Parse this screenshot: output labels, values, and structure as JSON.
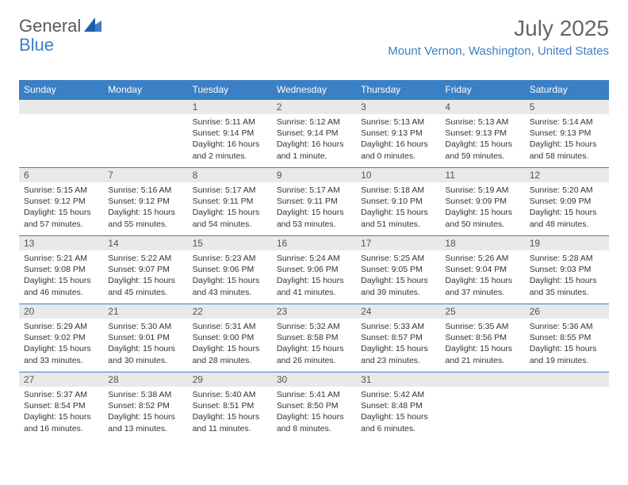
{
  "logo": {
    "text1": "General",
    "text2": "Blue"
  },
  "title": "July 2025",
  "location": "Mount Vernon, Washington, United States",
  "day_headers": [
    "Sunday",
    "Monday",
    "Tuesday",
    "Wednesday",
    "Thursday",
    "Friday",
    "Saturday"
  ],
  "colors": {
    "header_bg": "#3b7fc4",
    "header_fg": "#ffffff",
    "date_bg": "#e9e9e9",
    "accent": "#3b7fc4",
    "text": "#333333",
    "title_fg": "#666666"
  },
  "weeks": [
    [
      null,
      null,
      {
        "d": "1",
        "sr": "Sunrise: 5:11 AM",
        "ss": "Sunset: 9:14 PM",
        "dl": "Daylight: 16 hours and 2 minutes."
      },
      {
        "d": "2",
        "sr": "Sunrise: 5:12 AM",
        "ss": "Sunset: 9:14 PM",
        "dl": "Daylight: 16 hours and 1 minute."
      },
      {
        "d": "3",
        "sr": "Sunrise: 5:13 AM",
        "ss": "Sunset: 9:13 PM",
        "dl": "Daylight: 16 hours and 0 minutes."
      },
      {
        "d": "4",
        "sr": "Sunrise: 5:13 AM",
        "ss": "Sunset: 9:13 PM",
        "dl": "Daylight: 15 hours and 59 minutes."
      },
      {
        "d": "5",
        "sr": "Sunrise: 5:14 AM",
        "ss": "Sunset: 9:13 PM",
        "dl": "Daylight: 15 hours and 58 minutes."
      }
    ],
    [
      {
        "d": "6",
        "sr": "Sunrise: 5:15 AM",
        "ss": "Sunset: 9:12 PM",
        "dl": "Daylight: 15 hours and 57 minutes."
      },
      {
        "d": "7",
        "sr": "Sunrise: 5:16 AM",
        "ss": "Sunset: 9:12 PM",
        "dl": "Daylight: 15 hours and 55 minutes."
      },
      {
        "d": "8",
        "sr": "Sunrise: 5:17 AM",
        "ss": "Sunset: 9:11 PM",
        "dl": "Daylight: 15 hours and 54 minutes."
      },
      {
        "d": "9",
        "sr": "Sunrise: 5:17 AM",
        "ss": "Sunset: 9:11 PM",
        "dl": "Daylight: 15 hours and 53 minutes."
      },
      {
        "d": "10",
        "sr": "Sunrise: 5:18 AM",
        "ss": "Sunset: 9:10 PM",
        "dl": "Daylight: 15 hours and 51 minutes."
      },
      {
        "d": "11",
        "sr": "Sunrise: 5:19 AM",
        "ss": "Sunset: 9:09 PM",
        "dl": "Daylight: 15 hours and 50 minutes."
      },
      {
        "d": "12",
        "sr": "Sunrise: 5:20 AM",
        "ss": "Sunset: 9:09 PM",
        "dl": "Daylight: 15 hours and 48 minutes."
      }
    ],
    [
      {
        "d": "13",
        "sr": "Sunrise: 5:21 AM",
        "ss": "Sunset: 9:08 PM",
        "dl": "Daylight: 15 hours and 46 minutes."
      },
      {
        "d": "14",
        "sr": "Sunrise: 5:22 AM",
        "ss": "Sunset: 9:07 PM",
        "dl": "Daylight: 15 hours and 45 minutes."
      },
      {
        "d": "15",
        "sr": "Sunrise: 5:23 AM",
        "ss": "Sunset: 9:06 PM",
        "dl": "Daylight: 15 hours and 43 minutes."
      },
      {
        "d": "16",
        "sr": "Sunrise: 5:24 AM",
        "ss": "Sunset: 9:06 PM",
        "dl": "Daylight: 15 hours and 41 minutes."
      },
      {
        "d": "17",
        "sr": "Sunrise: 5:25 AM",
        "ss": "Sunset: 9:05 PM",
        "dl": "Daylight: 15 hours and 39 minutes."
      },
      {
        "d": "18",
        "sr": "Sunrise: 5:26 AM",
        "ss": "Sunset: 9:04 PM",
        "dl": "Daylight: 15 hours and 37 minutes."
      },
      {
        "d": "19",
        "sr": "Sunrise: 5:28 AM",
        "ss": "Sunset: 9:03 PM",
        "dl": "Daylight: 15 hours and 35 minutes."
      }
    ],
    [
      {
        "d": "20",
        "sr": "Sunrise: 5:29 AM",
        "ss": "Sunset: 9:02 PM",
        "dl": "Daylight: 15 hours and 33 minutes."
      },
      {
        "d": "21",
        "sr": "Sunrise: 5:30 AM",
        "ss": "Sunset: 9:01 PM",
        "dl": "Daylight: 15 hours and 30 minutes."
      },
      {
        "d": "22",
        "sr": "Sunrise: 5:31 AM",
        "ss": "Sunset: 9:00 PM",
        "dl": "Daylight: 15 hours and 28 minutes."
      },
      {
        "d": "23",
        "sr": "Sunrise: 5:32 AM",
        "ss": "Sunset: 8:58 PM",
        "dl": "Daylight: 15 hours and 26 minutes."
      },
      {
        "d": "24",
        "sr": "Sunrise: 5:33 AM",
        "ss": "Sunset: 8:57 PM",
        "dl": "Daylight: 15 hours and 23 minutes."
      },
      {
        "d": "25",
        "sr": "Sunrise: 5:35 AM",
        "ss": "Sunset: 8:56 PM",
        "dl": "Daylight: 15 hours and 21 minutes."
      },
      {
        "d": "26",
        "sr": "Sunrise: 5:36 AM",
        "ss": "Sunset: 8:55 PM",
        "dl": "Daylight: 15 hours and 19 minutes."
      }
    ],
    [
      {
        "d": "27",
        "sr": "Sunrise: 5:37 AM",
        "ss": "Sunset: 8:54 PM",
        "dl": "Daylight: 15 hours and 16 minutes."
      },
      {
        "d": "28",
        "sr": "Sunrise: 5:38 AM",
        "ss": "Sunset: 8:52 PM",
        "dl": "Daylight: 15 hours and 13 minutes."
      },
      {
        "d": "29",
        "sr": "Sunrise: 5:40 AM",
        "ss": "Sunset: 8:51 PM",
        "dl": "Daylight: 15 hours and 11 minutes."
      },
      {
        "d": "30",
        "sr": "Sunrise: 5:41 AM",
        "ss": "Sunset: 8:50 PM",
        "dl": "Daylight: 15 hours and 8 minutes."
      },
      {
        "d": "31",
        "sr": "Sunrise: 5:42 AM",
        "ss": "Sunset: 8:48 PM",
        "dl": "Daylight: 15 hours and 6 minutes."
      },
      null,
      null
    ]
  ]
}
